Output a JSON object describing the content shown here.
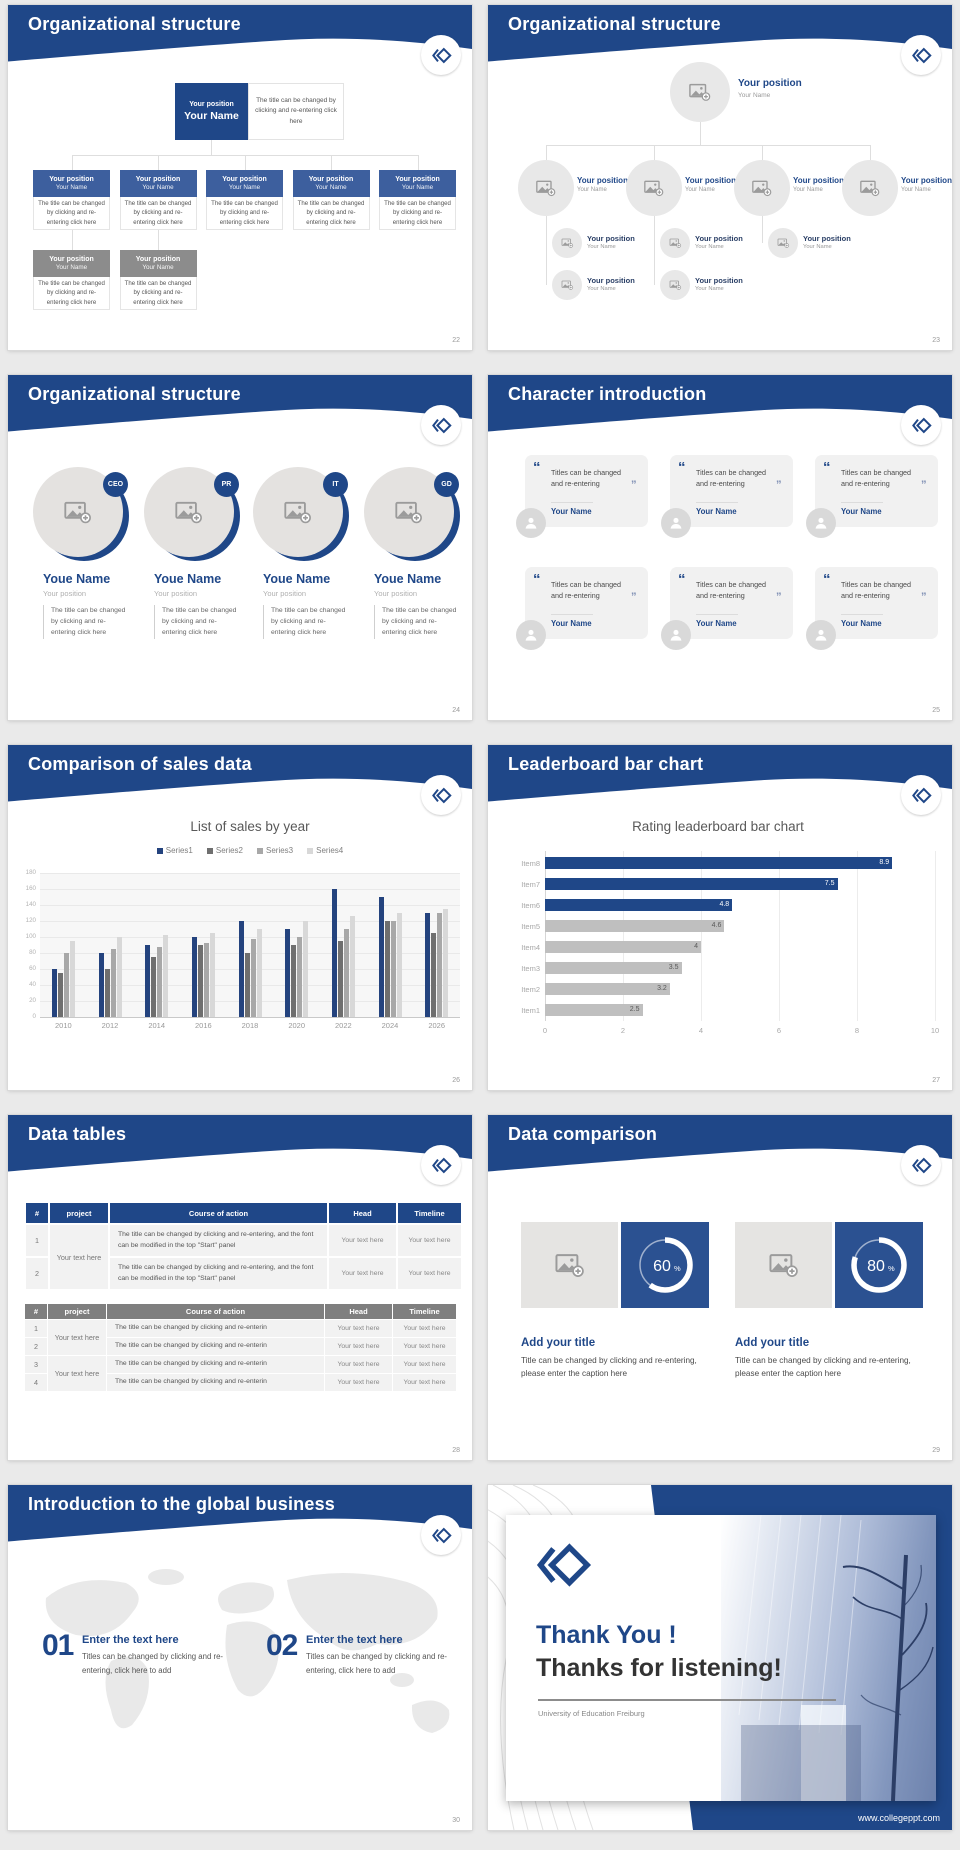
{
  "theme": {
    "navy": "#1F4788",
    "box_blue": "#3D5F9E",
    "box_gray": "#8C8C8C",
    "card_gray": "#f1f1f1",
    "donut_blue": "#2B5191"
  },
  "slides": [
    {
      "kind": "orgBoxes",
      "title": "Organizational structure",
      "page": "22",
      "root": {
        "position": "Your position",
        "name": "Your Name"
      },
      "root_caption": "The title can be changed by clicking and re-entering click here",
      "children": [
        {
          "position": "Your position",
          "name": "Your Name",
          "caption": "The title can be changed by clicking and re-entering click here"
        },
        {
          "position": "Your position",
          "name": "Your Name",
          "caption": "The title can be changed by clicking and re-entering click here"
        },
        {
          "position": "Your position",
          "name": "Your Name",
          "caption": "The title can be changed by clicking and re-entering click here"
        },
        {
          "position": "Your position",
          "name": "Your Name",
          "caption": "The title can be changed by clicking and re-entering click here"
        },
        {
          "position": "Your position",
          "name": "Your Name",
          "caption": "The title can be changed by clicking and re-entering click here"
        }
      ],
      "sub": [
        {
          "position": "Your position",
          "name": "Your Name",
          "caption": "The title can be changed by clicking and re-entering click here"
        },
        {
          "position": "Your position",
          "name": "Your Name",
          "caption": "The title can be changed by clicking and re-entering click here"
        }
      ]
    },
    {
      "kind": "orgPhotos",
      "title": "Organizational structure",
      "page": "23",
      "root": {
        "position": "Your position",
        "name": "Your Name"
      },
      "level2": [
        {
          "position": "Your position",
          "name": "Your Name"
        },
        {
          "position": "Your position",
          "name": "Your Name"
        },
        {
          "position": "Your position",
          "name": "Your Name"
        },
        {
          "position": "Your position",
          "name": "Your Name"
        }
      ],
      "level3a": [
        {
          "position": "Your position",
          "name": "Your Name"
        },
        {
          "position": "Your position",
          "name": "Your Name"
        },
        {
          "position": "Your position",
          "name": "Your Name"
        }
      ],
      "level3b": [
        {
          "position": "Your position",
          "name": "Your Name"
        },
        {
          "position": "Your position",
          "name": "Your Name"
        }
      ]
    },
    {
      "kind": "team",
      "title": "Organizational structure",
      "page": "24",
      "members": [
        {
          "badge": "CEO",
          "name": "Youe Name",
          "position": "Your position",
          "caption": "The title can be changed by clicking and re-entering click here"
        },
        {
          "badge": "PR",
          "name": "Youe Name",
          "position": "Your position",
          "caption": "The title can be changed by clicking and re-entering click here"
        },
        {
          "badge": "IT",
          "name": "Youe Name",
          "position": "Your position",
          "caption": "The title can be changed by clicking and re-entering click here"
        },
        {
          "badge": "GD",
          "name": "Youe Name",
          "position": "Your position",
          "caption": "The title can be changed by clicking and re-entering click here"
        }
      ]
    },
    {
      "kind": "quotes",
      "title": "Character introduction",
      "page": "25",
      "open_quote": "“",
      "close_quote": "”",
      "cards": [
        {
          "quote": "Titles can be changed and re-entering",
          "name": "Your Name"
        },
        {
          "quote": "Titles can be changed and re-entering",
          "name": "Your Name"
        },
        {
          "quote": "Titles can be changed and re-entering",
          "name": "Your Name"
        },
        {
          "quote": "Titles can be changed and re-entering",
          "name": "Your Name"
        },
        {
          "quote": "Titles can be changed and re-entering",
          "name": "Your Name"
        },
        {
          "quote": "Titles can be changed and re-entering",
          "name": "Your Name"
        }
      ]
    },
    {
      "kind": "chartBars",
      "title": "Comparison of sales data",
      "page": "26",
      "chart_ref": 0
    },
    {
      "kind": "chartLeader",
      "title": "Leaderboard bar chart",
      "page": "27",
      "chart_ref": 1
    },
    {
      "kind": "tables",
      "title": "Data tables",
      "page": "28",
      "headers": [
        "#",
        "project",
        "Course of action",
        "Head",
        "Timeline"
      ],
      "table1": {
        "project": "Your text here",
        "rows": [
          {
            "num": "1",
            "course": "The title can be changed by clicking and re-entering, and the font can be modified in the top \"Start\" panel",
            "head": "Your text here",
            "timeline": "Your text here"
          },
          {
            "num": "2",
            "course": "The title can be changed by clicking and re-entering, and the font can be modified in the top \"Start\" panel",
            "head": "Your text here",
            "timeline": "Your text here"
          }
        ]
      },
      "table2": {
        "project": [
          "Your text here",
          "Your text here"
        ],
        "rows": [
          {
            "num": "1",
            "course": "The title can be changed by clicking and re-enterin",
            "head": "Your text here",
            "timeline": "Your text here"
          },
          {
            "num": "2",
            "course": "The title can be changed by clicking and re-enterin",
            "head": "Your text here",
            "timeline": "Your text here"
          },
          {
            "num": "3",
            "course": "The title can be changed by clicking and re-enterin",
            "head": "Your text here",
            "timeline": "Your text here"
          },
          {
            "num": "4",
            "course": "The title can be changed by clicking and re-enterin",
            "head": "Your text here",
            "timeline": "Your text here"
          }
        ]
      }
    },
    {
      "kind": "compare",
      "title": "Data comparison",
      "page": "29",
      "cards": [
        {
          "percent": 60,
          "title": "Add your title",
          "caption": "Title can be changed by clicking and re-entering, please enter the caption here"
        },
        {
          "percent": 80,
          "title": "Add your title",
          "caption": "Title can be changed by clicking and re-entering, please enter the caption here"
        }
      ]
    },
    {
      "kind": "global",
      "title": "Introduction to the global business",
      "page": "30",
      "items": [
        {
          "num": "01",
          "title": "Enter the text here",
          "caption": "Titles can be changed by clicking and re-entering, click here to add"
        },
        {
          "num": "02",
          "title": "Enter the text here",
          "caption": "Titles can be changed by clicking and re-entering, click here to add"
        }
      ]
    },
    {
      "kind": "thanks",
      "line1": "Thank You !",
      "line2": "Thanks for listening!",
      "org": "University of Education Freiburg",
      "site": "www.collegeppt.com"
    }
  ],
  "chart_data": [
    {
      "type": "bar",
      "title": "List of sales by year",
      "categories": [
        "2010",
        "2012",
        "2014",
        "2016",
        "2018",
        "2020",
        "2022",
        "2024",
        "2026"
      ],
      "series": [
        {
          "name": "Series1",
          "color": "#24437E",
          "values": [
            60,
            80,
            90,
            100,
            120,
            110,
            160,
            150,
            130
          ]
        },
        {
          "name": "Series2",
          "color": "#6F6F6F",
          "values": [
            55,
            60,
            75,
            90,
            80,
            90,
            95,
            120,
            105
          ]
        },
        {
          "name": "Series3",
          "color": "#A8A8A8",
          "values": [
            80,
            85,
            88,
            92,
            98,
            100,
            110,
            120,
            130
          ]
        },
        {
          "name": "Series4",
          "color": "#D8D8D8",
          "values": [
            95,
            100,
            102,
            105,
            110,
            120,
            126,
            130,
            135
          ]
        }
      ],
      "xlabel": "",
      "ylabel": "",
      "ylim": [
        0,
        180
      ],
      "ytick_step": 20,
      "grid": true,
      "legend_position": "top"
    },
    {
      "type": "bar-horizontal",
      "title": "Rating leaderboard bar chart",
      "categories": [
        "Item1",
        "Item2",
        "Item3",
        "Item4",
        "Item5",
        "Item6",
        "Item7",
        "Item8"
      ],
      "values": [
        2.5,
        3.2,
        3.5,
        4,
        4.6,
        4.8,
        7.5,
        8.9
      ],
      "bar_colors": [
        "#BFBFBF",
        "#BFBFBF",
        "#BFBFBF",
        "#BFBFBF",
        "#BFBFBF",
        "#1F4788",
        "#1F4788",
        "#1F4788"
      ],
      "xlim": [
        0,
        10
      ],
      "xtick_step": 2,
      "grid": true,
      "legend_position": "none"
    }
  ]
}
